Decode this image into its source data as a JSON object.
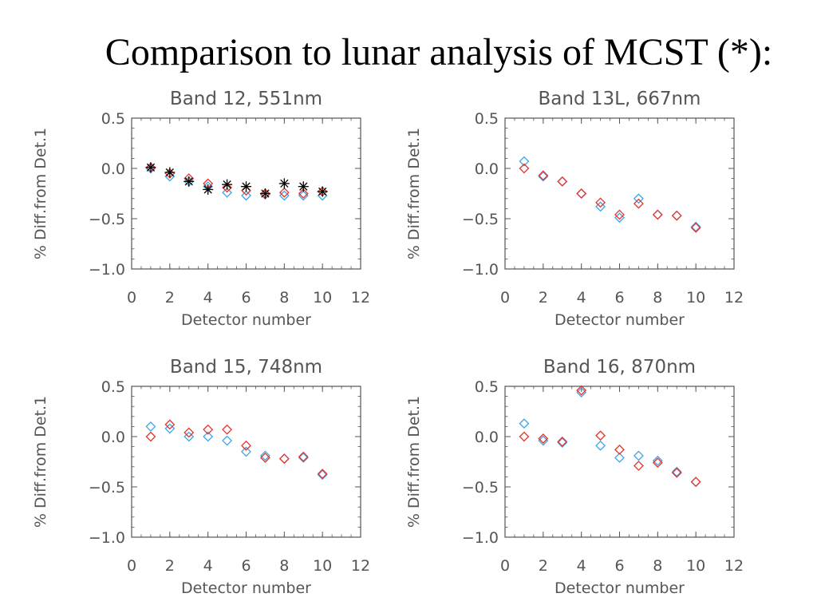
{
  "slide": {
    "title": "Comparison to lunar analysis of MCST (*):"
  },
  "colors": {
    "axes": "#555555",
    "series_red": "#e8312a",
    "series_blue": "#3aa7e8",
    "series_mcst": "#000000"
  },
  "chart_data": [
    {
      "type": "scatter",
      "title": "Band 12, 551nm",
      "xlabel": "Detector number",
      "ylabel": "% Diff.from Det.1",
      "xlim": [
        0,
        12
      ],
      "ylim": [
        -1.0,
        0.5
      ],
      "xticks": [
        "0",
        "2",
        "4",
        "6",
        "8",
        "10",
        "12"
      ],
      "yticks": [
        "0.5",
        "0.0",
        "−0.5",
        "−1.0"
      ],
      "x": [
        1,
        2,
        3,
        4,
        5,
        6,
        7,
        8,
        9,
        10
      ],
      "series": [
        {
          "marker": "diamond",
          "color": "#3aa7e8",
          "values": [
            0.0,
            -0.08,
            -0.13,
            -0.18,
            -0.24,
            -0.27,
            -0.26,
            -0.27,
            -0.27,
            -0.27
          ]
        },
        {
          "marker": "diamond",
          "color": "#e8312a",
          "values": [
            0.01,
            -0.05,
            -0.1,
            -0.15,
            -0.19,
            -0.22,
            -0.25,
            -0.24,
            -0.25,
            -0.23
          ]
        },
        {
          "marker": "star",
          "color": "#000000",
          "values": [
            0.01,
            -0.04,
            -0.13,
            -0.21,
            -0.16,
            -0.18,
            -0.25,
            -0.15,
            -0.18,
            -0.23
          ]
        }
      ],
      "grid": false
    },
    {
      "type": "scatter",
      "title": "Band 13L, 667nm",
      "xlabel": "Detector number",
      "ylabel": "% Diff.from Det.1",
      "xlim": [
        0,
        12
      ],
      "ylim": [
        -1.0,
        0.5
      ],
      "xticks": [
        "0",
        "2",
        "4",
        "6",
        "8",
        "10",
        "12"
      ],
      "yticks": [
        "0.5",
        "0.0",
        "−0.5",
        "−1.0"
      ],
      "x": [
        1,
        2,
        3,
        4,
        5,
        6,
        7,
        8,
        9,
        10
      ],
      "series": [
        {
          "marker": "diamond",
          "color": "#3aa7e8",
          "values": [
            0.07,
            -0.08,
            -0.13,
            -0.25,
            -0.38,
            -0.49,
            -0.3,
            -0.46,
            -0.47,
            -0.58
          ]
        },
        {
          "marker": "diamond",
          "color": "#e8312a",
          "values": [
            0.0,
            -0.07,
            -0.13,
            -0.25,
            -0.34,
            -0.46,
            -0.35,
            -0.46,
            -0.47,
            -0.59
          ]
        }
      ],
      "grid": false
    },
    {
      "type": "scatter",
      "title": "Band 15, 748nm",
      "xlabel": "Detector number",
      "ylabel": "% Diff.from Det.1",
      "xlim": [
        0,
        12
      ],
      "ylim": [
        -1.0,
        0.5
      ],
      "xticks": [
        "0",
        "2",
        "4",
        "6",
        "8",
        "10",
        "12"
      ],
      "yticks": [
        "0.5",
        "0.0",
        "−0.5",
        "−1.0"
      ],
      "x": [
        1,
        2,
        3,
        4,
        5,
        6,
        7,
        8,
        9,
        10
      ],
      "series": [
        {
          "marker": "diamond",
          "color": "#3aa7e8",
          "values": [
            0.1,
            0.08,
            0.0,
            0.0,
            -0.04,
            -0.15,
            -0.19,
            -0.22,
            -0.21,
            -0.38
          ]
        },
        {
          "marker": "diamond",
          "color": "#e8312a",
          "values": [
            0.0,
            0.12,
            0.04,
            0.07,
            0.07,
            -0.09,
            -0.21,
            -0.22,
            -0.2,
            -0.37
          ]
        }
      ],
      "grid": false
    },
    {
      "type": "scatter",
      "title": "Band 16, 870nm",
      "xlabel": "Detector number",
      "ylabel": "% Diff.from Det.1",
      "xlim": [
        0,
        12
      ],
      "ylim": [
        -1.0,
        0.5
      ],
      "xticks": [
        "0",
        "2",
        "4",
        "6",
        "8",
        "10",
        "12"
      ],
      "yticks": [
        "0.5",
        "0.0",
        "−0.5",
        "−1.0"
      ],
      "x": [
        1,
        2,
        3,
        4,
        5,
        6,
        7,
        8,
        9,
        10
      ],
      "series": [
        {
          "marker": "diamond",
          "color": "#3aa7e8",
          "values": [
            0.13,
            -0.04,
            -0.06,
            0.44,
            -0.09,
            -0.21,
            -0.19,
            -0.24,
            -0.35,
            -0.45
          ]
        },
        {
          "marker": "diamond",
          "color": "#e8312a",
          "values": [
            0.0,
            -0.02,
            -0.05,
            0.46,
            0.01,
            -0.13,
            -0.29,
            -0.26,
            -0.36,
            -0.45
          ]
        }
      ],
      "grid": false
    }
  ]
}
